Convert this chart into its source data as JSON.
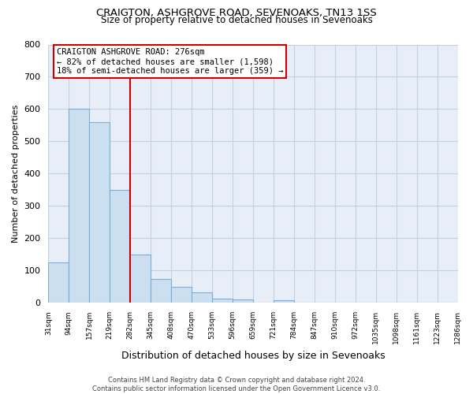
{
  "title": "CRAIGTON, ASHGROVE ROAD, SEVENOAKS, TN13 1SS",
  "subtitle": "Size of property relative to detached houses in Sevenoaks",
  "xlabel": "Distribution of detached houses by size in Sevenoaks",
  "ylabel": "Number of detached properties",
  "bar_values": [
    125,
    600,
    560,
    350,
    150,
    75,
    50,
    33,
    12,
    10,
    0,
    8,
    0,
    0,
    0,
    0,
    0,
    0,
    0,
    0
  ],
  "bin_labels": [
    "31sqm",
    "94sqm",
    "157sqm",
    "219sqm",
    "282sqm",
    "345sqm",
    "408sqm",
    "470sqm",
    "533sqm",
    "596sqm",
    "659sqm",
    "721sqm",
    "784sqm",
    "847sqm",
    "910sqm",
    "972sqm",
    "1035sqm",
    "1098sqm",
    "1161sqm",
    "1223sqm",
    "1286sqm"
  ],
  "bar_color": "#ccdff0",
  "bar_edge_color": "#7aafd4",
  "vline_color": "#cc0000",
  "annotation_title": "CRAIGTON ASHGROVE ROAD: 276sqm",
  "annotation_line1": "← 82% of detached houses are smaller (1,598)",
  "annotation_line2": "18% of semi-detached houses are larger (359) →",
  "annotation_box_color": "#ffffff",
  "annotation_box_edge": "#cc0000",
  "ylim": [
    0,
    800
  ],
  "yticks": [
    0,
    100,
    200,
    300,
    400,
    500,
    600,
    700,
    800
  ],
  "footer1": "Contains HM Land Registry data © Crown copyright and database right 2024.",
  "footer2": "Contains public sector information licensed under the Open Government Licence v3.0.",
  "background_color": "#ffffff",
  "plot_bg_color": "#e8eef8",
  "grid_color": "#c5cfe0"
}
